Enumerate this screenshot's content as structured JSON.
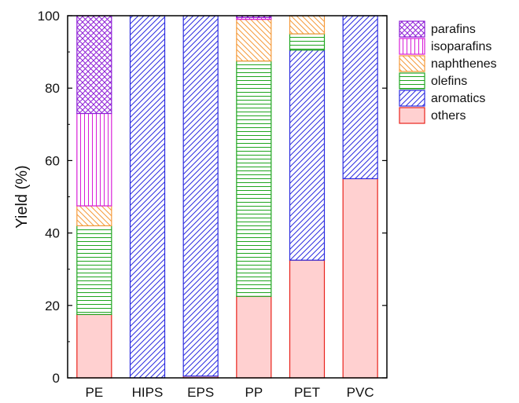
{
  "chart_data": {
    "type": "bar",
    "stacked": true,
    "title": "",
    "xlabel": "",
    "ylabel": "Yield (%)",
    "ylim": [
      0,
      100
    ],
    "yticks": [
      0,
      20,
      40,
      60,
      80,
      100
    ],
    "categories": [
      "PE",
      "HIPS",
      "EPS",
      "PP",
      "PET",
      "PVC"
    ],
    "grid": false,
    "legend_position": "top-right",
    "series": [
      {
        "name": "others",
        "color": "#e8231c",
        "fill": "#ffd0d0",
        "pattern": "solid",
        "values": [
          17.5,
          0,
          0.5,
          22.5,
          32.5,
          55
        ]
      },
      {
        "name": "aromatics",
        "color": "#2c2ce0",
        "fill": "#ffffff",
        "pattern": "diagonal",
        "values": [
          0,
          100,
          99.5,
          0,
          58,
          45
        ]
      },
      {
        "name": "olefins",
        "color": "#1fa51f",
        "fill": "#ffffff",
        "pattern": "horizontal",
        "values": [
          24.5,
          0,
          0,
          65,
          4.5,
          0
        ]
      },
      {
        "name": "naphthenes",
        "color": "#f59a3a",
        "fill": "#ffffff",
        "pattern": "diagonal-back",
        "values": [
          5.5,
          0,
          0,
          11.5,
          5,
          0
        ]
      },
      {
        "name": "isoparafins",
        "color": "#d81ed8",
        "fill": "#ffffff",
        "pattern": "vertical",
        "values": [
          25.5,
          0,
          0,
          0.5,
          0,
          0
        ]
      },
      {
        "name": "parafins",
        "color": "#8e1ed6",
        "fill": "#ffffff",
        "pattern": "crosshatch",
        "values": [
          27,
          0,
          0,
          0.5,
          0,
          0
        ]
      }
    ],
    "legend_order": [
      "parafins",
      "isoparafins",
      "naphthenes",
      "olefins",
      "aromatics",
      "others"
    ]
  }
}
